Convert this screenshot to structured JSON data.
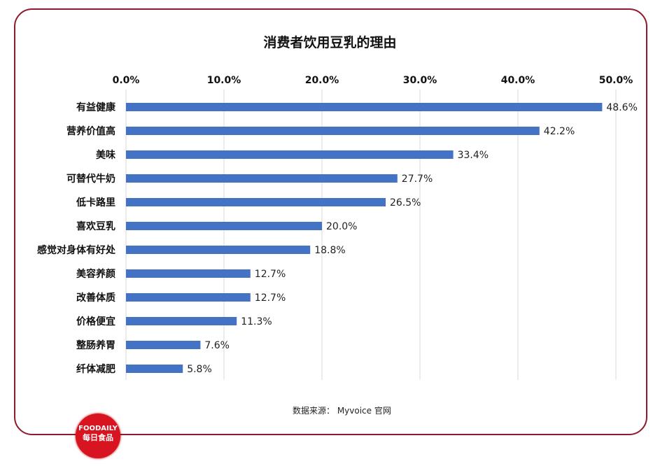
{
  "chart_data": {
    "type": "bar",
    "orientation": "horizontal",
    "title": "消费者饮用豆乳的理由",
    "categories": [
      "有益健康",
      "营养价值高",
      "美味",
      "可替代牛奶",
      "低卡路里",
      "喜欢豆乳",
      "感觉对身体有好处",
      "美容养颜",
      "改善体质",
      "价格便宜",
      "整肠养胃",
      "纤体减肥"
    ],
    "values": [
      48.6,
      42.2,
      33.4,
      27.7,
      26.5,
      20.0,
      18.8,
      12.7,
      12.7,
      11.3,
      7.6,
      5.8
    ],
    "value_labels": [
      "48.6%",
      "42.2%",
      "33.4%",
      "27.7%",
      "26.5%",
      "20.0%",
      "18.8%",
      "12.7%",
      "12.7%",
      "11.3%",
      "7.6%",
      "5.8%"
    ],
    "xlim": [
      0,
      50
    ],
    "xticks": [
      0,
      10,
      20,
      30,
      40,
      50
    ],
    "xtick_labels": [
      "0.0%",
      "10.0%",
      "20.0%",
      "30.0%",
      "40.0%",
      "50.0%"
    ],
    "axis_position": "top",
    "grid": true,
    "bar_color": "#4472c4",
    "xlabel": "",
    "ylabel": ""
  },
  "source": "数据来源： Myvoice 官网",
  "logo": {
    "en": "FOODAILY",
    "cn": "每日食品"
  },
  "colors": {
    "frame": "#8e1b2b",
    "logo": "#d7141f"
  }
}
